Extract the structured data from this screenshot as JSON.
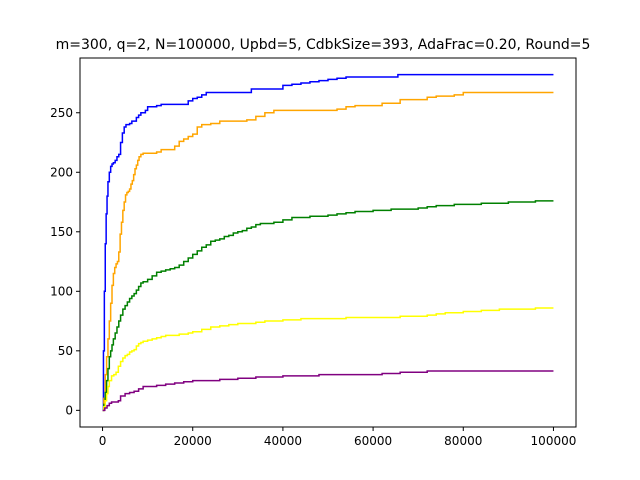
{
  "chart_data": {
    "type": "line",
    "title": "m=300, q=2, N=100000, Upbd=5, CdbkSize=393, AdaFrac=0.20, Round=5",
    "xlabel": "",
    "ylabel": "",
    "xlim": [
      -5000,
      105000
    ],
    "ylim": [
      -14,
      296
    ],
    "grid": false,
    "legend": "none",
    "x_ticks": [
      0,
      20000,
      40000,
      60000,
      80000,
      100000
    ],
    "x_tick_labels": [
      "0",
      "20000",
      "40000",
      "60000",
      "80000",
      "100000"
    ],
    "y_ticks": [
      0,
      50,
      100,
      150,
      200,
      250
    ],
    "y_tick_labels": [
      "0",
      "50",
      "100",
      "150",
      "200",
      "250"
    ],
    "series": [
      {
        "color": "#0000ff",
        "x": [
          0,
          200,
          400,
          600,
          800,
          1000,
          1200,
          1500,
          1800,
          2100,
          2400,
          2800,
          3200,
          3600,
          4000,
          4400,
          4800,
          5200,
          5600,
          6000,
          6500,
          7000,
          7500,
          8000,
          8500,
          9000,
          9500,
          10000,
          11000,
          12000,
          13000,
          14000,
          15000,
          16000,
          17000,
          18000,
          19000,
          20000,
          21000,
          22000,
          23000,
          24000,
          25000,
          26000,
          27000,
          28000,
          29000,
          30000,
          31000,
          32000,
          33000,
          34000,
          35000,
          36000,
          38000,
          40000,
          42000,
          44000,
          46000,
          48000,
          50000,
          52000,
          54000,
          56000,
          58000,
          60000,
          62000,
          64000,
          65500,
          66000,
          68000,
          70000,
          72000,
          75000,
          80000,
          85000,
          90000,
          95000,
          100000
        ],
        "y": [
          0,
          50,
          100,
          140,
          165,
          180,
          192,
          200,
          205,
          207,
          208,
          210,
          213,
          215,
          225,
          233,
          238,
          240,
          240,
          241,
          243,
          243,
          246,
          248,
          250,
          250,
          252,
          255,
          255,
          256,
          257,
          257,
          257,
          257,
          257,
          257,
          260,
          262,
          263,
          265,
          267,
          267,
          267,
          267,
          267,
          267,
          267,
          267,
          267,
          267,
          270,
          270,
          270,
          270,
          270,
          273,
          274,
          275,
          276,
          277,
          278,
          279,
          280,
          280,
          280,
          280,
          280,
          280,
          282,
          282,
          282,
          282,
          282,
          282,
          282,
          282,
          282,
          282,
          282
        ]
      },
      {
        "color": "#ffa500",
        "x": [
          0,
          300,
          600,
          900,
          1200,
          1500,
          1800,
          2100,
          2400,
          2700,
          3000,
          3300,
          3600,
          3900,
          4200,
          4500,
          4800,
          5100,
          5400,
          5700,
          6000,
          6300,
          6600,
          6900,
          7200,
          7500,
          7800,
          8100,
          8500,
          9000,
          10000,
          11000,
          12000,
          13000,
          14000,
          15000,
          16000,
          17000,
          18000,
          19000,
          20000,
          21000,
          22000,
          23000,
          24000,
          25000,
          26000,
          28000,
          30000,
          32000,
          34000,
          36000,
          38000,
          40000,
          42000,
          44000,
          46000,
          48000,
          50000,
          52000,
          54000,
          56000,
          58000,
          60000,
          62000,
          64000,
          66000,
          68000,
          70000,
          72000,
          74000,
          76000,
          78000,
          80000,
          85000,
          90000,
          95000,
          100000
        ],
        "y": [
          0,
          10,
          30,
          45,
          60,
          75,
          90,
          105,
          115,
          120,
          123,
          125,
          133,
          148,
          158,
          168,
          175,
          181,
          183,
          184,
          186,
          190,
          193,
          198,
          203,
          206,
          210,
          213,
          215,
          216,
          216,
          216,
          217,
          219,
          219,
          219,
          222,
          226,
          228,
          230,
          232,
          238,
          240,
          240,
          241,
          241,
          243,
          243,
          243,
          244,
          247,
          250,
          252,
          252,
          252,
          252,
          252,
          252,
          252,
          253,
          255,
          256,
          256,
          256,
          258,
          258,
          261,
          261,
          261,
          263,
          264,
          264,
          265,
          267,
          267,
          267,
          267,
          267
        ]
      },
      {
        "color": "#008000",
        "x": [
          0,
          300,
          600,
          900,
          1200,
          1500,
          1800,
          2100,
          2400,
          2800,
          3200,
          3600,
          4000,
          4500,
          5000,
          5500,
          6000,
          6500,
          7000,
          7500,
          8000,
          8500,
          9000,
          10000,
          11000,
          12000,
          13000,
          14000,
          15000,
          16000,
          17000,
          18000,
          19000,
          20000,
          21000,
          22000,
          23000,
          24000,
          25000,
          26000,
          27000,
          28000,
          29000,
          30000,
          31000,
          32000,
          33000,
          34000,
          35000,
          36000,
          38000,
          40000,
          42000,
          44000,
          46000,
          48000,
          50000,
          52000,
          54000,
          56000,
          58000,
          60000,
          62000,
          64000,
          66000,
          68000,
          70000,
          72000,
          74000,
          76000,
          78000,
          80000,
          82000,
          84000,
          86000,
          88000,
          90000,
          92000,
          94000,
          96000,
          98000,
          100000
        ],
        "y": [
          0,
          5,
          15,
          25,
          35,
          45,
          50,
          55,
          60,
          65,
          70,
          75,
          80,
          85,
          88,
          91,
          94,
          96,
          98,
          101,
          104,
          107,
          108,
          110,
          113,
          116,
          117,
          118,
          119,
          120,
          122,
          125,
          128,
          131,
          134,
          137,
          139,
          142,
          143,
          144,
          146,
          147,
          149,
          150,
          151,
          153,
          154,
          156,
          157,
          157,
          158,
          160,
          162,
          162,
          163,
          163,
          164,
          165,
          166,
          167,
          167,
          168,
          168,
          169,
          169,
          169,
          170,
          171,
          172,
          172,
          173,
          173,
          173,
          174,
          174,
          174,
          175,
          175,
          175,
          176,
          176,
          176
        ]
      },
      {
        "color": "#ffff00",
        "x": [
          0,
          300,
          600,
          900,
          1200,
          1500,
          2000,
          2500,
          3000,
          3500,
          4000,
          4500,
          5000,
          5500,
          6000,
          6500,
          7000,
          7500,
          8000,
          8500,
          9000,
          10000,
          11000,
          12000,
          13000,
          14000,
          15000,
          16000,
          17000,
          18000,
          19000,
          20000,
          22000,
          24000,
          26000,
          28000,
          30000,
          32000,
          34000,
          36000,
          38000,
          40000,
          42000,
          44000,
          46000,
          48000,
          50000,
          52000,
          54000,
          56000,
          58000,
          60000,
          62000,
          64000,
          66000,
          68000,
          70000,
          72000,
          74000,
          76000,
          78000,
          80000,
          82000,
          84000,
          86000,
          88000,
          90000,
          92000,
          94000,
          96000,
          98000,
          100000
        ],
        "y": [
          0,
          3,
          8,
          14,
          20,
          25,
          29,
          30,
          32,
          37,
          41,
          44,
          46,
          47,
          49,
          50,
          51,
          54,
          56,
          57,
          58,
          59,
          60,
          61,
          62,
          63,
          63,
          63,
          64,
          64,
          65,
          66,
          68,
          70,
          71,
          72,
          73,
          73,
          74,
          75,
          75,
          76,
          76,
          77,
          77,
          77,
          77,
          77,
          78,
          78,
          78,
          78,
          78,
          78,
          79,
          79,
          79,
          80,
          81,
          82,
          82,
          83,
          83,
          84,
          84,
          85,
          85,
          85,
          85,
          86,
          86,
          86
        ]
      },
      {
        "color": "#800080",
        "x": [
          0,
          500,
          1000,
          1500,
          2000,
          2500,
          3000,
          3500,
          4000,
          5000,
          6000,
          7000,
          8000,
          9000,
          10000,
          12000,
          14000,
          16000,
          18000,
          20000,
          22000,
          24000,
          26000,
          28000,
          30000,
          32000,
          34000,
          36000,
          38000,
          40000,
          42000,
          44000,
          46000,
          48000,
          50000,
          52000,
          54000,
          56000,
          58000,
          60000,
          62000,
          64000,
          66000,
          68000,
          70000,
          72000,
          74000,
          76000,
          78000,
          80000,
          85000,
          90000,
          95000,
          100000
        ],
        "y": [
          0,
          2,
          4,
          6,
          7,
          7,
          7,
          8,
          12,
          14,
          15,
          16,
          18,
          20,
          20,
          21,
          22,
          23,
          24,
          25,
          25,
          25,
          26,
          26,
          27,
          27,
          28,
          28,
          28,
          29,
          29,
          29,
          29,
          30,
          30,
          30,
          30,
          30,
          30,
          30,
          31,
          31,
          32,
          32,
          32,
          33,
          33,
          33,
          33,
          33,
          33,
          33,
          33,
          33
        ]
      }
    ]
  }
}
